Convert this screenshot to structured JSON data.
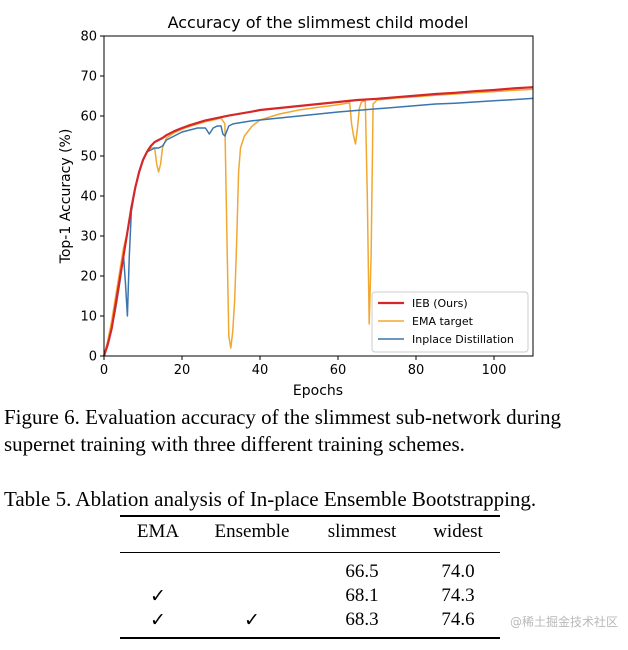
{
  "chart_data": {
    "type": "line",
    "title": "Accuracy of the slimmest child model",
    "xlabel": "Epochs",
    "ylabel": "Top-1 Accuracy (%)",
    "xlim": [
      0,
      110
    ],
    "ylim": [
      0,
      80
    ],
    "xticks": [
      0,
      20,
      40,
      60,
      80,
      100
    ],
    "yticks": [
      0,
      10,
      20,
      30,
      40,
      50,
      60,
      70,
      80
    ],
    "grid": false,
    "legend_position": "bottom-right",
    "series": [
      {
        "name": "IEB (Ours)",
        "color": "#d62728",
        "x": [
          0,
          1,
          2,
          3,
          4,
          5,
          6,
          7,
          8,
          9,
          10,
          11,
          12,
          13,
          14,
          15,
          16,
          18,
          20,
          22,
          24,
          26,
          28,
          30,
          32,
          35,
          38,
          40,
          45,
          50,
          55,
          60,
          65,
          70,
          75,
          80,
          85,
          90,
          95,
          100,
          105,
          110
        ],
        "y": [
          0,
          3,
          7,
          13,
          19,
          25,
          31,
          37,
          42,
          46,
          49,
          51,
          52.5,
          53.5,
          54,
          54.5,
          55.2,
          56.2,
          57,
          57.7,
          58.3,
          58.9,
          59.3,
          59.7,
          60.1,
          60.6,
          61.1,
          61.5,
          62,
          62.5,
          63,
          63.5,
          64,
          64.3,
          64.7,
          65.1,
          65.5,
          65.8,
          66.2,
          66.5,
          66.9,
          67.2
        ]
      },
      {
        "name": "EMA target",
        "color": "#f0a830",
        "x": [
          0,
          1,
          2,
          3,
          4,
          5,
          6,
          7,
          8,
          9,
          10,
          11,
          12,
          13,
          13.5,
          14,
          14.5,
          15,
          16,
          18,
          20,
          22,
          24,
          26,
          28,
          30,
          31,
          31.5,
          32,
          32.5,
          33,
          33.5,
          34,
          34.5,
          35,
          36,
          38,
          40,
          45,
          50,
          55,
          60,
          63,
          63.5,
          64,
          64.5,
          65,
          65.5,
          66,
          67,
          67.5,
          68,
          68.5,
          69,
          70,
          75,
          80,
          85,
          90,
          95,
          100,
          105,
          110
        ],
        "y": [
          0,
          4,
          9,
          15,
          21,
          27,
          31,
          37,
          42,
          46,
          49,
          51,
          52,
          52,
          48,
          46,
          48,
          52,
          54.5,
          55.8,
          56.7,
          57.4,
          58,
          58.6,
          59,
          59.5,
          58,
          30,
          5,
          2,
          6,
          14,
          28,
          46,
          52,
          55,
          57.5,
          59,
          60.5,
          61.5,
          62.2,
          62.8,
          63.3,
          58,
          55,
          53,
          57,
          62,
          63.5,
          63.8,
          40,
          8,
          25,
          63,
          64,
          64.5,
          64.8,
          65.2,
          65.5,
          65.8,
          66.1,
          66.4,
          66.7
        ]
      },
      {
        "name": "Inplace Distillation",
        "color": "#3a75ad",
        "x": [
          0,
          1,
          2,
          3,
          4,
          5,
          5.5,
          6,
          6.5,
          7,
          8,
          9,
          10,
          11,
          12,
          13,
          14,
          15,
          16,
          18,
          20,
          22,
          24,
          26,
          27,
          28,
          29,
          30,
          30.5,
          31,
          32,
          33,
          34,
          36,
          38,
          40,
          45,
          50,
          55,
          60,
          65,
          70,
          75,
          80,
          85,
          90,
          95,
          100,
          105,
          110
        ],
        "y": [
          0,
          3,
          7,
          12,
          18,
          25,
          18,
          10,
          25,
          36,
          42,
          46,
          49,
          51,
          51.5,
          52,
          52,
          52.5,
          54,
          55,
          56,
          56.5,
          57,
          57,
          55.5,
          57,
          57.5,
          57.5,
          55.5,
          55,
          57.5,
          58,
          58.2,
          58.5,
          58.8,
          59,
          59.5,
          60,
          60.5,
          61,
          61.4,
          61.8,
          62.2,
          62.6,
          63,
          63.2,
          63.5,
          63.8,
          64.1,
          64.4
        ]
      }
    ]
  },
  "figure_caption": "Figure 6. Evaluation accuracy of the slimmest sub-network during supernet training with three different training schemes.",
  "table": {
    "caption": "Table 5. Ablation analysis of In-place Ensemble Bootstrapping.",
    "headers": [
      "EMA",
      "Ensemble",
      "slimmest",
      "widest"
    ],
    "rows": [
      [
        "",
        "",
        "66.5",
        "74.0"
      ],
      [
        "✓",
        "",
        "68.1",
        "74.3"
      ],
      [
        "✓",
        "✓",
        "68.3",
        "74.6"
      ]
    ]
  },
  "watermark": "@稀土掘金技术社区"
}
